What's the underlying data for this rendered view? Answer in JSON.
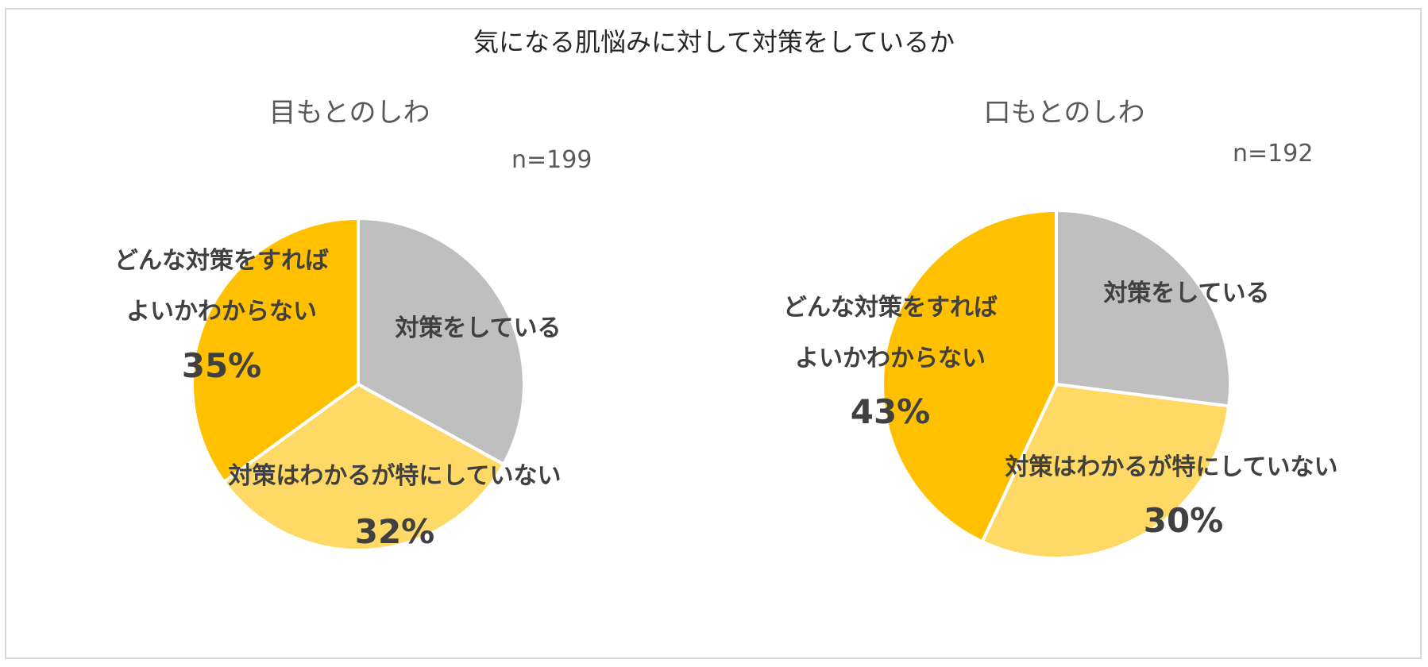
{
  "title": "気になる肌悩みに対して対策をしているか",
  "colors": {
    "対策をしている": "#bfbfbf",
    "対策はわかるが特にしていない": "#ffd966",
    "どんな対策をすれば\nよいかわからない": "#ffc000",
    "separator": "#ffffff",
    "label_text": "#404040"
  },
  "chart_data": [
    {
      "type": "pie",
      "title": "目もとのしわ",
      "n_label": "n=199",
      "slices": [
        {
          "label": "対策をしている",
          "value": 33,
          "pct_label": ""
        },
        {
          "label": "対策はわかるが特にしていない",
          "value": 32,
          "pct_label": "32%"
        },
        {
          "label": "どんな対策をすれば\nよいかわからない",
          "value": 35,
          "pct_label": "35%"
        }
      ]
    },
    {
      "type": "pie",
      "title": "口もとのしわ",
      "n_label": "n=192",
      "slices": [
        {
          "label": "対策をしている",
          "value": 27,
          "pct_label": ""
        },
        {
          "label": "対策はわかるが特にしていない",
          "value": 30,
          "pct_label": "30%"
        },
        {
          "label": "どんな対策をすれば\nよいかわからない",
          "value": 43,
          "pct_label": "43%"
        }
      ]
    }
  ]
}
